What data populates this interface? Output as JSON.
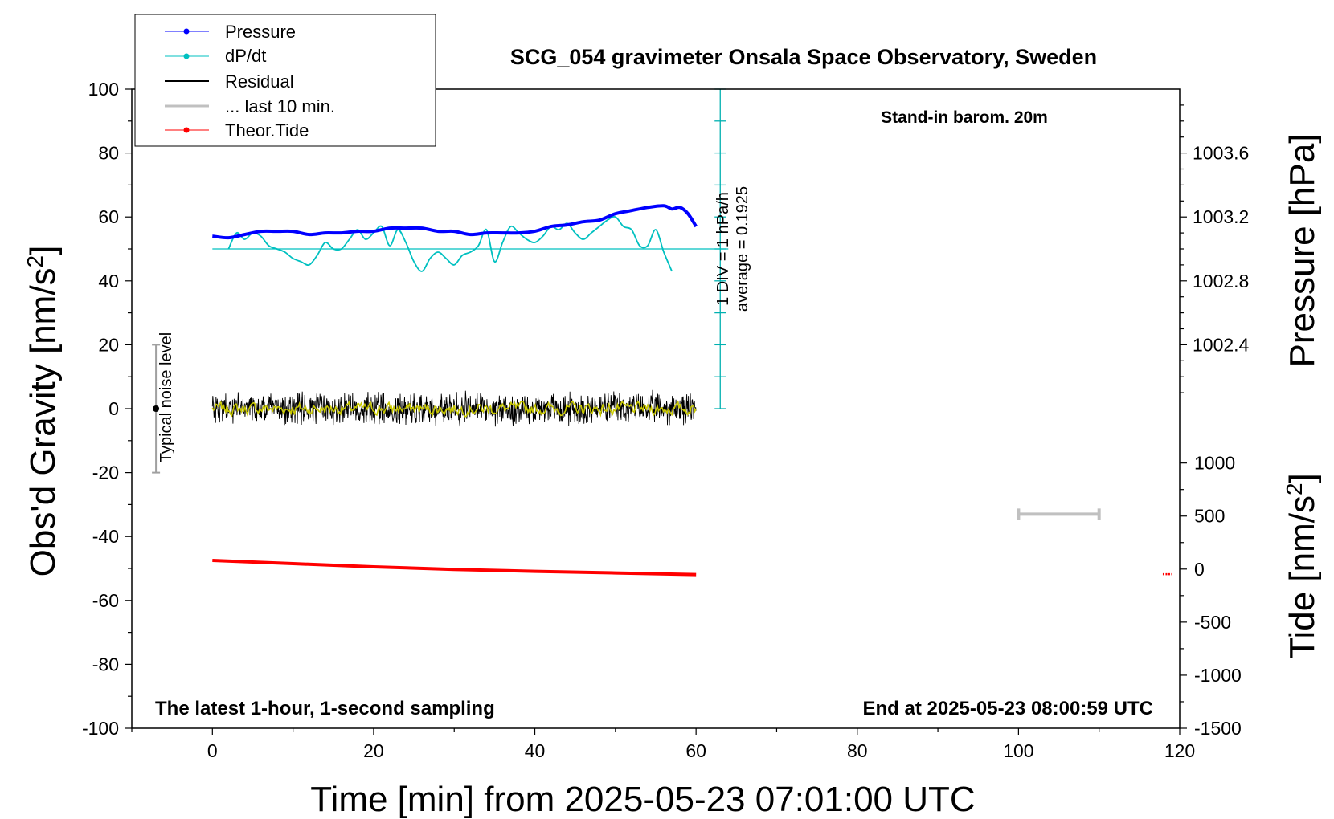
{
  "chart_data": {
    "type": "line",
    "title": "SCG_054 gravimeter Onsala Space Observatory, Sweden",
    "xlabel": "Time [min] from 2025-05-23 07:01:00 UTC",
    "ylabel_left": "Obs'd Gravity [nm/s",
    "ylabel_left_sup": "2",
    "ylabel_left_end": "]",
    "ylabel_right_pressure": "Pressure [hPa]",
    "ylabel_right_tide": "Tide [nm/s",
    "ylabel_right_tide_sup": "2",
    "ylabel_right_tide_end": "]",
    "xlim": [
      -10,
      120
    ],
    "ylim": [
      -100,
      100
    ],
    "x_ticks": [
      "0",
      "20",
      "40",
      "60",
      "80",
      "100",
      "120"
    ],
    "y_ticks": [
      "100",
      "80",
      "60",
      "40",
      "20",
      "0",
      "-20",
      "-40",
      "-60",
      "-80",
      "-100"
    ],
    "pressure_ticks": [
      "1003.6",
      "1003.2",
      "1002.8",
      "1002.4"
    ],
    "pressure_tick_values": [
      1003.6,
      1003.2,
      1002.8,
      1002.4
    ],
    "pressure_axis": {
      "value_at_y0": 1002.0,
      "value_at_y100": 1004.0
    },
    "tide_ticks": [
      "1000",
      "500",
      "0",
      "-500",
      "-1000",
      "-1500"
    ],
    "tide_tick_values": [
      1000,
      500,
      0,
      -500,
      -1000,
      -1500
    ],
    "tide_axis": {
      "value_at_y_minus100": -1500,
      "value_at_y_minus17": 1000
    },
    "annotations": {
      "stand_in": "Stand-in barom. 20m",
      "latest": "The latest 1-hour, 1-second sampling",
      "end_at": "End at 2025-05-23 08:00:59 UTC",
      "scale_line1": "1 DIV = 1 hPa/h",
      "scale_line2": "average = 0.1925",
      "noise": "Typical noise level"
    },
    "legend": [
      {
        "label": "Pressure",
        "color": "#0000ff",
        "marker": true
      },
      {
        "label": "dP/dt",
        "color": "#00c0c0",
        "marker": true
      },
      {
        "label": "Residual",
        "color": "#000000",
        "marker": false
      },
      {
        "label": "... last 10 min.",
        "color": "#c0c0c0",
        "marker": false
      },
      {
        "label": "Theor.Tide",
        "color": "#ff0000",
        "marker": true
      }
    ],
    "series": [
      {
        "name": "Pressure",
        "color": "#0000ff",
        "x": [
          0,
          2,
          4,
          6,
          8,
          10,
          12,
          14,
          16,
          18,
          20,
          22,
          24,
          26,
          28,
          30,
          32,
          34,
          36,
          38,
          40,
          42,
          44,
          46,
          48,
          50,
          52,
          54,
          56,
          57,
          58,
          59,
          60
        ],
        "y": [
          54,
          53.5,
          54.5,
          55.5,
          55.5,
          55.5,
          54.5,
          55,
          55,
          55.5,
          55.5,
          56.5,
          56.5,
          56.5,
          55.5,
          55.5,
          54.5,
          55,
          55,
          55,
          55.5,
          57,
          57.5,
          58.5,
          59,
          61,
          62,
          63,
          63.5,
          62.5,
          63,
          61,
          57
        ]
      },
      {
        "name": "dP/dt",
        "color": "#00c0c0",
        "baseline": 50,
        "x": [
          2,
          3,
          4,
          5,
          6,
          7,
          8,
          9,
          10,
          11,
          12,
          13,
          14,
          15,
          16,
          17,
          18,
          19,
          20,
          21,
          22,
          23,
          24,
          25,
          26,
          27,
          28,
          29,
          30,
          31,
          32,
          33,
          34,
          35,
          36,
          37,
          38,
          39,
          40,
          41,
          42,
          43,
          44,
          45,
          46,
          47,
          48,
          49,
          50,
          51,
          52,
          53,
          54,
          55,
          56,
          57
        ],
        "y": [
          50,
          55,
          53,
          55,
          54,
          51,
          50,
          49,
          47,
          46,
          45,
          48,
          52,
          50,
          50,
          53,
          56,
          53,
          55,
          57,
          51,
          56,
          52,
          46,
          43,
          47,
          49,
          47,
          45,
          48,
          49,
          51,
          56,
          46,
          52,
          57,
          55,
          53,
          52,
          54,
          57,
          56,
          58,
          55,
          53,
          55,
          57,
          59,
          60,
          57,
          56,
          51,
          51,
          56,
          49,
          43
        ]
      },
      {
        "name": "Residual",
        "color": "#000000",
        "x_range": [
          0,
          60
        ],
        "center": 0,
        "amplitude": 4
      },
      {
        "name": "... last 10 min.",
        "color": "#c8c800",
        "x_range": [
          0,
          60
        ],
        "center": 0,
        "amplitude": 1.5
      },
      {
        "name": "Theor.Tide",
        "color": "#ff0000",
        "x": [
          0,
          10,
          20,
          30,
          40,
          50,
          60
        ],
        "y": [
          -47.5,
          -48.5,
          -49.5,
          -50.3,
          -50.9,
          -51.4,
          -51.9
        ]
      }
    ],
    "gray_bar": {
      "x": [
        100,
        110
      ],
      "y": -33
    },
    "tide_marker": {
      "x": 118.5,
      "y": -51.8
    },
    "noise_bar": {
      "x": -7,
      "y": [
        -20,
        20
      ]
    },
    "dpdt_scale_axis": {
      "x": 63,
      "y": [
        0,
        100
      ]
    }
  }
}
